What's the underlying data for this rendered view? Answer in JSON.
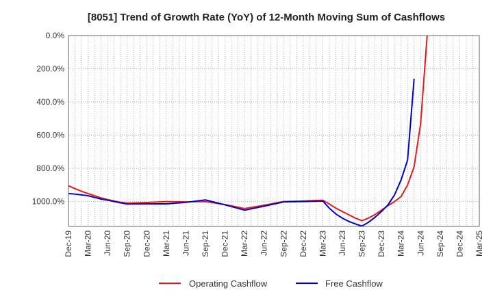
{
  "chart_data": {
    "type": "line",
    "title": "[8051]  Trend of Growth Rate (YoY) of 12-Month Moving Sum of Cashflows",
    "xlabel": "",
    "ylabel": "",
    "x_range": [
      "2019-12",
      "2025-03"
    ],
    "x_tick_labels": [
      "Dec-19",
      "Mar-20",
      "Jun-20",
      "Sep-20",
      "Dec-20",
      "Mar-21",
      "Jun-21",
      "Sep-21",
      "Dec-21",
      "Mar-22",
      "Jun-22",
      "Sep-22",
      "Dec-22",
      "Mar-23",
      "Jun-23",
      "Sep-23",
      "Dec-23",
      "Mar-24",
      "Jun-24",
      "Sep-24",
      "Dec-24",
      "Mar-25"
    ],
    "y_tick_labels": [
      "1000.0%",
      "800.0%",
      "600.0%",
      "400.0%",
      "200.0%",
      "0.0%"
    ],
    "ylim": [
      -150,
      1000
    ],
    "y_ticks": [
      0,
      200,
      400,
      600,
      800,
      1000
    ],
    "grid": true,
    "legend_position": "bottom",
    "series": [
      {
        "name": "Operating Cashflow",
        "color": "#e31a1c",
        "x": [
          "2019-12",
          "2020-01",
          "2020-02",
          "2020-03",
          "2020-04",
          "2020-05",
          "2020-06",
          "2020-07",
          "2020-08",
          "2020-09",
          "2020-12",
          "2021-03",
          "2021-06",
          "2021-09",
          "2021-12",
          "2022-03",
          "2022-06",
          "2022-09",
          "2022-12",
          "2023-03",
          "2023-04",
          "2023-05",
          "2023-06",
          "2023-07",
          "2023-08",
          "2023-09",
          "2023-10",
          "2023-11",
          "2023-12",
          "2024-01",
          "2024-02",
          "2024-03",
          "2024-04",
          "2024-05",
          "2024-06",
          "2024-07"
        ],
        "values": [
          95,
          78,
          62,
          48,
          35,
          22,
          12,
          3,
          -4,
          -10,
          -6,
          0,
          -2,
          0,
          -18,
          -42,
          -22,
          0,
          3,
          8,
          -15,
          -40,
          -60,
          -80,
          -100,
          -115,
          -100,
          -78,
          -52,
          -25,
          0,
          30,
          100,
          210,
          470,
          1000
        ]
      },
      {
        "name": "Free Cashflow",
        "color": "#0000cc",
        "x": [
          "2019-12",
          "2020-01",
          "2020-02",
          "2020-03",
          "2020-04",
          "2020-05",
          "2020-06",
          "2020-07",
          "2020-08",
          "2020-09",
          "2020-12",
          "2021-03",
          "2021-06",
          "2021-09",
          "2021-12",
          "2022-03",
          "2022-06",
          "2022-09",
          "2022-12",
          "2023-03",
          "2023-04",
          "2023-05",
          "2023-06",
          "2023-07",
          "2023-08",
          "2023-09",
          "2023-10",
          "2023-11",
          "2023-12",
          "2024-01",
          "2024-02",
          "2024-03",
          "2024-04",
          "2024-05",
          "2024-06"
        ],
        "values": [
          48,
          45,
          40,
          35,
          25,
          15,
          8,
          0,
          -8,
          -15,
          -14,
          -14,
          -5,
          10,
          -20,
          -52,
          -28,
          -2,
          0,
          3,
          -40,
          -75,
          -100,
          -120,
          -135,
          -148,
          -125,
          -95,
          -60,
          -20,
          40,
          130,
          250,
          740,
          null
        ]
      }
    ]
  }
}
